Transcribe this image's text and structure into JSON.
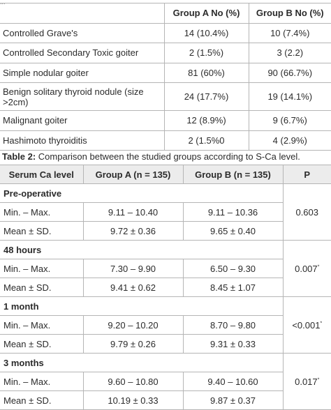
{
  "stub_text": "...",
  "table1": {
    "headers": [
      "",
      "Group A No (%)",
      "Group B No (%)"
    ],
    "rows": [
      {
        "label": "Controlled Grave's",
        "a": "14 (10.4%)",
        "b": "10 (7.4%)"
      },
      {
        "label": "Controlled Secondary Toxic goiter",
        "a": "2 (1.5%)",
        "b": "3 (2.2)"
      },
      {
        "label": "Simple nodular goiter",
        "a": "81 (60%)",
        "b": "90 (66.7%)"
      },
      {
        "label": "Benign solitary thyroid nodule (size >2cm)",
        "a": "24 (17.7%)",
        "b": "19 (14.1%)"
      },
      {
        "label": "Malignant goiter",
        "a": "12 (8.9%)",
        "b": "9 (6.7%)"
      },
      {
        "label": "Hashimoto thyroiditis",
        "a": "2 (1.5%0",
        "b": "4 (2.9%)"
      }
    ]
  },
  "table2": {
    "caption_label": "Table 2:",
    "caption_text": " Comparison between the studied groups according to S-Ca level.",
    "headers": [
      "Serum Ca level",
      "Group A (n = 135)",
      "Group B (n = 135)",
      "P"
    ],
    "sections": [
      {
        "title": "Pre-operative",
        "p": "0.603",
        "p_mark": "",
        "rows": [
          {
            "label": "Min. – Max.",
            "a": "9.11 – 10.40",
            "b": "9.11 – 10.36"
          },
          {
            "label": "Mean ± SD.",
            "a": "9.72 ± 0.36",
            "b": "9.65 ± 0.40"
          }
        ]
      },
      {
        "title": "48 hours",
        "p": "0.007",
        "p_mark": "*",
        "rows": [
          {
            "label": "Min. – Max.",
            "a": "7.30 – 9.90",
            "b": "6.50 – 9.30"
          },
          {
            "label": "Mean ± SD.",
            "a": "9.41 ± 0.62",
            "b": "8.45 ± 1.07"
          }
        ]
      },
      {
        "title": "1 month",
        "p": "<0.001",
        "p_mark": "*",
        "rows": [
          {
            "label": "Min. – Max.",
            "a": "9.20 – 10.20",
            "b": "8.70 – 9.80"
          },
          {
            "label": "Mean ± SD.",
            "a": "9.79 ± 0.26",
            "b": "9.31 ± 0.33"
          }
        ]
      },
      {
        "title": "3 months",
        "p": "0.017",
        "p_mark": "*",
        "rows": [
          {
            "label": "Min. – Max.",
            "a": "9.60 – 10.80",
            "b": "9.40 – 10.60"
          },
          {
            "label": "Mean ± SD.",
            "a": "10.19 ± 0.33",
            "b": "9.87 ± 0.37"
          }
        ]
      }
    ]
  }
}
